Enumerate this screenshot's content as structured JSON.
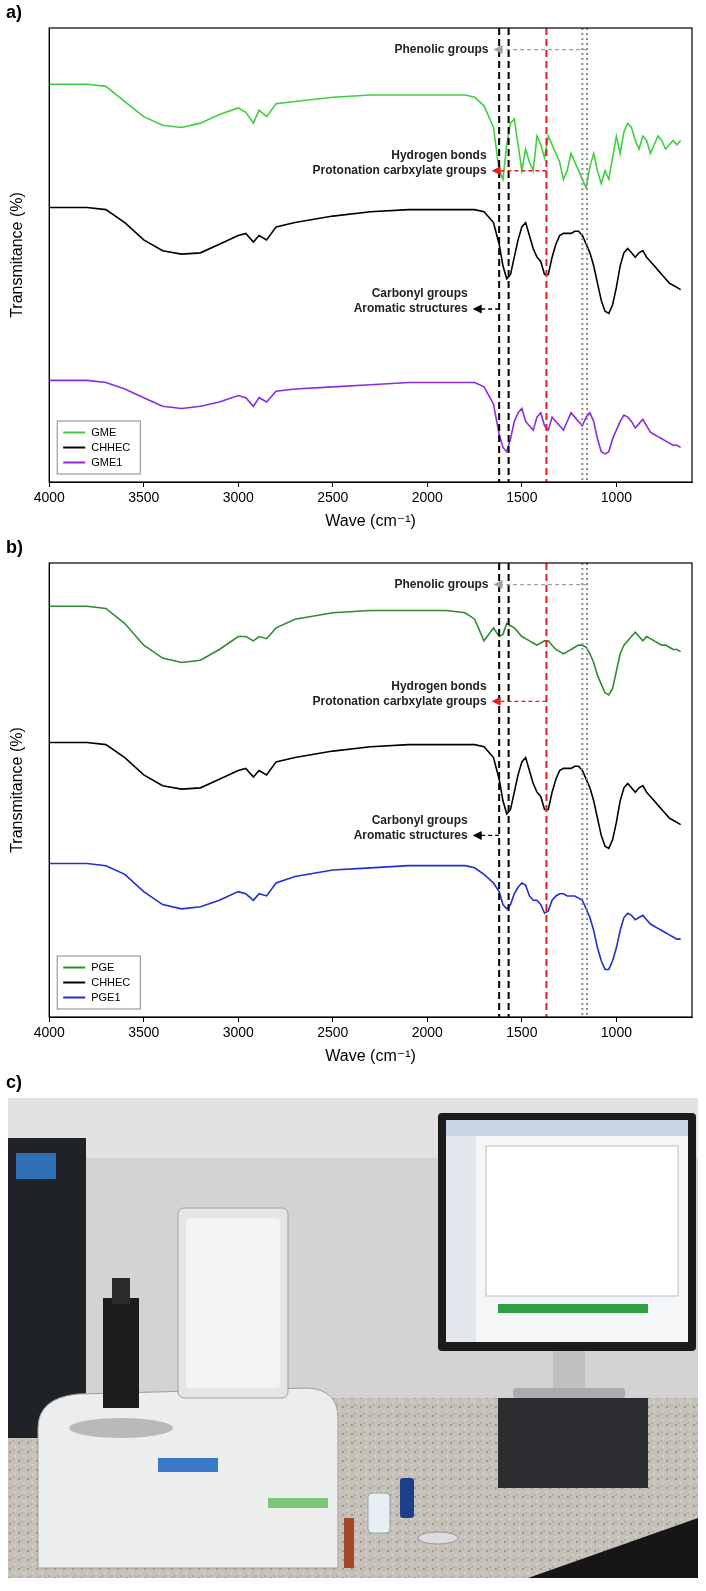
{
  "chart_data": [
    {
      "panel": "a)",
      "type": "line",
      "x_label": "Wave (cm⁻¹)",
      "y_label": "Transmitance (%)",
      "x": [
        4000,
        3800,
        3700,
        3600,
        3500,
        3400,
        3300,
        3200,
        3100,
        3000,
        2960,
        2920,
        2890,
        2850,
        2800,
        2700,
        2500,
        2300,
        2100,
        1900,
        1800,
        1750,
        1700,
        1650,
        1620,
        1600,
        1580,
        1560,
        1540,
        1520,
        1500,
        1480,
        1460,
        1440,
        1420,
        1400,
        1380,
        1360,
        1340,
        1320,
        1300,
        1280,
        1260,
        1240,
        1220,
        1200,
        1180,
        1160,
        1140,
        1120,
        1100,
        1080,
        1060,
        1040,
        1020,
        1000,
        980,
        960,
        940,
        920,
        900,
        880,
        860,
        840,
        820,
        800,
        780,
        760,
        740,
        720,
        700,
        680,
        660
      ],
      "series": [
        {
          "name": "GME",
          "color": "#3fcf3f",
          "values": [
            92,
            92,
            91.5,
            88,
            84.5,
            82.5,
            82,
            83,
            85,
            86.5,
            85.5,
            83,
            86,
            84.5,
            87.5,
            88,
            89,
            89.5,
            89.5,
            89.5,
            89.5,
            89,
            87,
            82,
            72,
            70,
            78,
            83,
            84,
            78,
            72,
            77,
            74,
            72,
            80,
            78,
            75,
            80,
            78,
            76,
            74,
            70,
            72,
            76,
            74,
            72,
            70,
            68,
            73,
            76,
            72,
            69,
            72,
            70,
            75,
            80,
            76,
            81,
            83,
            82,
            79,
            77,
            80,
            79,
            76,
            78,
            80,
            79,
            77,
            78,
            79,
            78,
            79
          ]
        },
        {
          "name": "CHHEC",
          "color": "#000000",
          "values": [
            63.5,
            63.5,
            63,
            60,
            56,
            53.5,
            52.7,
            53,
            55,
            57,
            57.5,
            55.5,
            57,
            56,
            59,
            60,
            61.5,
            62.5,
            63,
            63,
            63,
            63,
            62.5,
            60,
            55,
            50,
            47,
            48,
            52,
            56,
            59,
            60,
            57,
            54,
            52,
            51,
            48,
            48,
            52,
            55,
            57,
            57.5,
            57.5,
            57.5,
            58,
            58,
            57,
            55,
            53,
            50,
            46,
            42,
            39.5,
            39,
            41,
            45,
            50,
            53,
            54,
            53,
            52,
            53,
            53.5,
            52,
            51,
            50,
            49,
            48,
            47,
            46,
            45.5,
            45,
            44.5
          ]
        },
        {
          "name": "GME1",
          "color": "#8a2be2",
          "values": [
            23.5,
            23.5,
            23,
            21.5,
            19.5,
            17.5,
            17,
            17.5,
            18.5,
            20,
            19.5,
            17.5,
            19.5,
            18.5,
            21,
            21.5,
            22,
            22.5,
            23,
            23,
            23,
            23,
            22,
            18,
            11,
            8,
            7,
            10,
            14,
            16,
            17,
            14,
            13,
            12,
            15,
            16,
            13,
            12,
            15,
            14,
            13,
            12,
            14,
            16,
            15,
            14,
            13,
            15,
            16,
            14,
            10,
            7,
            6.5,
            7,
            10,
            12,
            14,
            15.5,
            15,
            14,
            12.5,
            13.5,
            14.5,
            13,
            11.5,
            11,
            10.5,
            10,
            9.5,
            9,
            8.5,
            8.5,
            8
          ]
        }
      ],
      "xlim": [
        4000,
        600
      ],
      "xticks": [
        4000,
        3500,
        3000,
        2500,
        2000,
        1500,
        1000
      ],
      "ylim": [
        0,
        105
      ],
      "grid": false,
      "tick_labels": "x",
      "legend": "lower left",
      "vlines": [
        {
          "x": 1620,
          "color": "#000000",
          "line_style": "dashed"
        },
        {
          "x": 1570,
          "color": "#000000",
          "line_style": "dashed"
        },
        {
          "x": 1370,
          "color": "#e02020",
          "line_style": "dashed"
        },
        {
          "x": 1180,
          "color": "#8c8c8c",
          "line_style": "dotted"
        },
        {
          "x": 1155,
          "color": "#8c8c8c",
          "line_style": "dotted"
        }
      ],
      "annotations": [
        {
          "text": [
            "Phenolic groups"
          ],
          "color": "#a0a0a0",
          "x_from": 1155,
          "x_to": 1650,
          "y": 100
        },
        {
          "text": [
            "Hydrogen bonds",
            "Protonation carbxylate groups"
          ],
          "color": "#e02020",
          "x_from": 1370,
          "x_to": 1660,
          "y": 72
        },
        {
          "text": [
            "Carbonyl groups",
            "Aromatic structures"
          ],
          "color": "#000000",
          "x_from": 1620,
          "x_to": 1760,
          "y": 40
        }
      ]
    },
    {
      "panel": "b)",
      "type": "line",
      "x_label": "Wave (cm⁻¹)",
      "y_label": "Transmitance (%)",
      "x": [
        4000,
        3800,
        3700,
        3600,
        3500,
        3400,
        3300,
        3200,
        3100,
        3000,
        2960,
        2920,
        2890,
        2850,
        2800,
        2700,
        2500,
        2300,
        2100,
        1900,
        1800,
        1750,
        1700,
        1650,
        1620,
        1600,
        1580,
        1560,
        1540,
        1520,
        1500,
        1480,
        1460,
        1440,
        1420,
        1400,
        1380,
        1360,
        1340,
        1320,
        1300,
        1280,
        1260,
        1240,
        1220,
        1200,
        1180,
        1160,
        1140,
        1120,
        1100,
        1080,
        1060,
        1040,
        1020,
        1000,
        980,
        960,
        940,
        920,
        900,
        880,
        860,
        840,
        820,
        800,
        780,
        760,
        740,
        720,
        700,
        680,
        660
      ],
      "series": [
        {
          "name": "PGE",
          "color": "#2e8b2e",
          "values": [
            95,
            95,
            94.5,
            91,
            86,
            83,
            82,
            82.5,
            85,
            88,
            88,
            87,
            88,
            87.5,
            90,
            92,
            93.5,
            94,
            94,
            94,
            93.5,
            92,
            87,
            90,
            88,
            88.5,
            91,
            90.5,
            90,
            89,
            88,
            87.5,
            87,
            86.5,
            86,
            86.5,
            87,
            87,
            86,
            85,
            84.5,
            84,
            84.5,
            85,
            85.5,
            86,
            86,
            85.5,
            84,
            82,
            79,
            77,
            75,
            74.5,
            76,
            80,
            84,
            86,
            87,
            88,
            89,
            88,
            87,
            88,
            87.5,
            87,
            86.5,
            86,
            86,
            85.5,
            85,
            85,
            84.5
          ]
        },
        {
          "name": "CHHEC",
          "color": "#000000",
          "values": [
            63.5,
            63.5,
            63,
            60,
            56,
            53.5,
            52.7,
            53,
            55,
            57,
            57.5,
            55.5,
            57,
            56,
            59,
            60,
            61.5,
            62.5,
            63,
            63,
            63,
            63,
            62.5,
            60,
            55,
            50,
            47,
            48,
            52,
            56,
            59,
            60,
            57,
            54,
            52,
            51,
            48,
            48,
            52,
            55,
            57,
            57.5,
            57.5,
            57.5,
            58,
            58,
            57,
            55,
            53,
            50,
            46,
            42,
            39.5,
            39,
            41,
            45,
            50,
            53,
            54,
            53,
            52,
            53,
            53.5,
            52,
            51,
            50,
            49,
            48,
            47,
            46,
            45.5,
            45,
            44.5
          ]
        },
        {
          "name": "PGE1",
          "color": "#1f2fd0",
          "values": [
            35.5,
            35.5,
            35,
            33,
            29,
            26,
            25,
            25.5,
            27,
            29,
            28.5,
            27,
            28.5,
            28,
            31,
            32.5,
            34,
            34.5,
            35,
            35,
            35,
            34.5,
            33,
            31,
            29,
            26,
            25,
            26,
            28.5,
            30,
            31,
            30.5,
            28,
            27,
            27,
            26,
            24,
            24.5,
            27,
            28,
            28.5,
            28.5,
            28,
            28,
            28,
            27.5,
            27,
            25,
            23,
            20,
            16,
            13,
            11,
            11,
            13,
            16,
            20,
            23,
            24,
            23.5,
            22.5,
            23,
            23.5,
            22.5,
            21.5,
            21,
            20.5,
            20,
            19.5,
            19,
            18.5,
            18,
            18
          ]
        }
      ],
      "xlim": [
        4000,
        600
      ],
      "xticks": [
        4000,
        3500,
        3000,
        2500,
        2000,
        1500,
        1000
      ],
      "ylim": [
        0,
        105
      ],
      "grid": false,
      "tick_labels": "x",
      "legend": "lower left",
      "vlines": [
        {
          "x": 1620,
          "color": "#000000",
          "line_style": "dashed"
        },
        {
          "x": 1570,
          "color": "#000000",
          "line_style": "dashed"
        },
        {
          "x": 1370,
          "color": "#e02020",
          "line_style": "dashed"
        },
        {
          "x": 1180,
          "color": "#8c8c8c",
          "line_style": "dotted"
        },
        {
          "x": 1155,
          "color": "#8c8c8c",
          "line_style": "dotted"
        }
      ],
      "annotations": [
        {
          "text": [
            "Phenolic groups"
          ],
          "color": "#a0a0a0",
          "x_from": 1155,
          "x_to": 1650,
          "y": 100
        },
        {
          "text": [
            "Hydrogen bonds",
            "Protonation carbxylate groups"
          ],
          "color": "#e02020",
          "x_from": 1370,
          "x_to": 1660,
          "y": 73
        },
        {
          "text": [
            "Carbonyl groups",
            "Aromatic structures"
          ],
          "color": "#000000",
          "x_from": 1620,
          "x_to": 1760,
          "y": 42
        }
      ]
    }
  ],
  "photo": {
    "panel": "c)"
  }
}
